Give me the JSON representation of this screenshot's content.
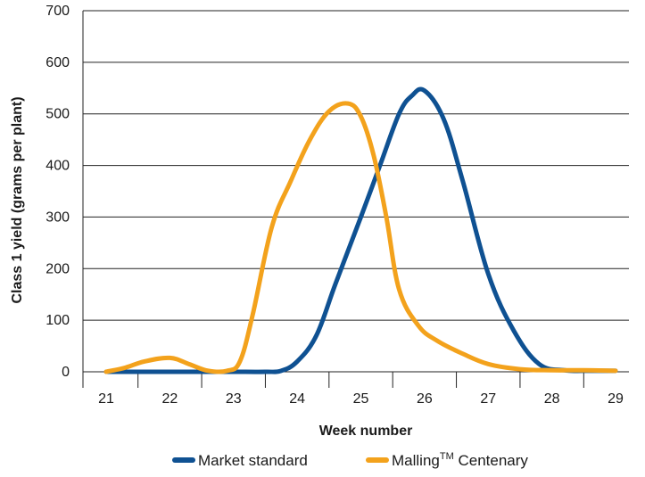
{
  "chart_data": {
    "type": "line",
    "xlabel": "Week number",
    "ylabel": "Class 1 yield (grams per plant)",
    "ylim": [
      0,
      700
    ],
    "yticks": [
      0,
      100,
      200,
      300,
      400,
      500,
      600,
      700
    ],
    "xlim": [
      21,
      29
    ],
    "xticks": [
      21,
      22,
      23,
      24,
      25,
      26,
      27,
      28,
      29
    ],
    "grid": "horizontal",
    "legend_position": "bottom",
    "series": [
      {
        "name": "Market standard",
        "color": "#0f5192",
        "x": [
          21.0,
          21.5,
          22.0,
          22.5,
          23.0,
          23.5,
          23.75,
          24.0,
          24.3,
          24.6,
          25.0,
          25.3,
          25.6,
          25.8,
          26.0,
          26.3,
          26.6,
          27.0,
          27.4,
          27.8,
          28.2,
          28.6,
          29.0
        ],
        "values": [
          0,
          0,
          0,
          0,
          0,
          0,
          2,
          20,
          70,
          170,
          300,
          400,
          500,
          535,
          545,
          490,
          370,
          190,
          80,
          15,
          3,
          2,
          2
        ]
      },
      {
        "name": "Malling",
        "name_superscript": "TM",
        "name_suffix": " Centenary",
        "color": "#f3a21c",
        "x": [
          21.0,
          21.3,
          21.6,
          22.0,
          22.3,
          22.6,
          22.9,
          23.1,
          23.3,
          23.6,
          23.9,
          24.2,
          24.5,
          24.8,
          25.0,
          25.2,
          25.4,
          25.6,
          25.9,
          26.2,
          26.6,
          27.0,
          27.5,
          28.0,
          28.5,
          29.0
        ],
        "values": [
          0,
          8,
          20,
          27,
          15,
          2,
          2,
          20,
          110,
          280,
          370,
          450,
          505,
          520,
          495,
          420,
          300,
          160,
          90,
          60,
          35,
          15,
          5,
          3,
          3,
          2
        ]
      }
    ]
  }
}
